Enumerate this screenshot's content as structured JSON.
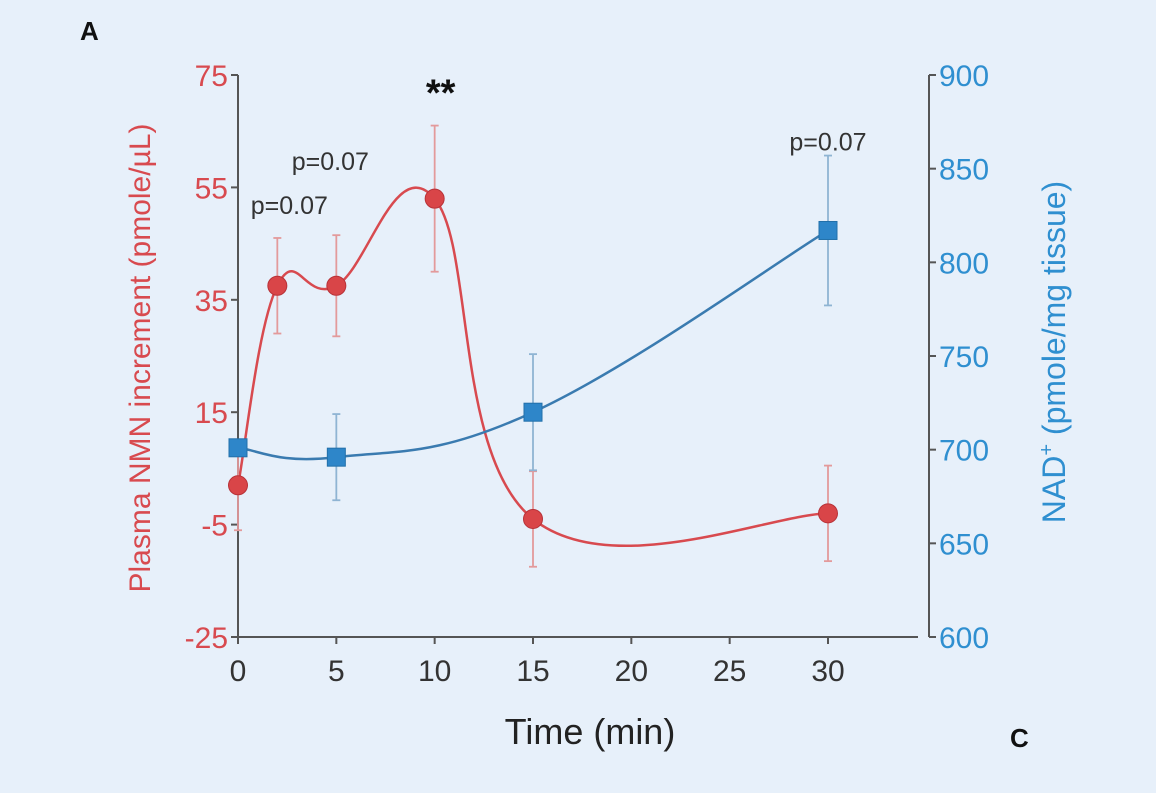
{
  "panel_labels": {
    "top_left": "A",
    "bottom_right": "C"
  },
  "colors": {
    "background": "#e7f0fa",
    "nmn": "#d84a4f",
    "nmn_fill": "#d94548",
    "nad": "#3a7bb0",
    "nad_fill": "#2e86c9",
    "nad_axis": "#2f8fd0",
    "axis": "#555555",
    "error_nmn": "#e39a9b",
    "error_nad": "#8fb4d3"
  },
  "chart_data": {
    "type": "line",
    "xlabel": "Time (min)",
    "x_tick_labels": [
      "0",
      "5",
      "10",
      "15",
      "20",
      "25",
      "30"
    ],
    "y_left": {
      "label": "Plasma NMN increment (pmole/µL)",
      "ylim": [
        -25,
        75
      ],
      "tick_labels": [
        "-25",
        "-5",
        "15",
        "35",
        "55",
        "75"
      ]
    },
    "y_right": {
      "label_main": "NAD",
      "label_superscript": "+",
      "label_rest": " (pmole/mg tissue)",
      "ylim": [
        600,
        900
      ],
      "tick_labels": [
        "600",
        "650",
        "700",
        "750",
        "800",
        "850",
        "900"
      ]
    },
    "series": [
      {
        "axis": "left",
        "marker": "circle",
        "points": [
          {
            "x": 0,
            "y": 2,
            "err": 8
          },
          {
            "x": 2,
            "y": 37.5,
            "err": 8.5
          },
          {
            "x": 5,
            "y": 37.5,
            "err": 9
          },
          {
            "x": 10,
            "y": 53,
            "err": 13
          },
          {
            "x": 15,
            "y": -4,
            "err": 8.5
          },
          {
            "x": 30,
            "y": -3,
            "err": 8.5
          }
        ]
      },
      {
        "axis": "right",
        "marker": "square",
        "points": [
          {
            "x": 0,
            "y": 701,
            "err": 0
          },
          {
            "x": 5,
            "y": 696,
            "err": 23
          },
          {
            "x": 15,
            "y": 720,
            "err": 31
          },
          {
            "x": 30,
            "y": 817,
            "err": 40
          }
        ]
      }
    ],
    "annotations": [
      {
        "text": "p=0.07",
        "series": 0,
        "point": 1
      },
      {
        "text": "p=0.07",
        "series": 0,
        "point": 2
      },
      {
        "text": "**",
        "series": 0,
        "point": 3
      },
      {
        "text": "p=0.07",
        "series": 1,
        "point": 3
      }
    ]
  }
}
